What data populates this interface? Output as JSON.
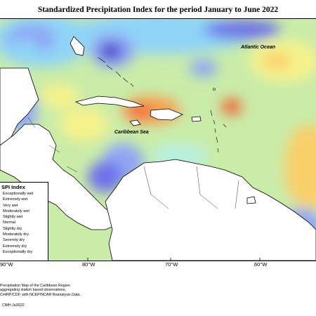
{
  "title": "Standardized Precipitation Index for the period January to June 2022",
  "ocean_labels": {
    "atlantic": "Atlantic Ocean",
    "caribbean": "Caribbean Sea"
  },
  "legend": {
    "title": "SPI Index",
    "items": [
      {
        "label": "Exceptionally wet",
        "color": "#4b3fc9"
      },
      {
        "label": "Extremely wet",
        "color": "#6d72e8"
      },
      {
        "label": "Very wet",
        "color": "#8fa6f5"
      },
      {
        "label": "Moderately wet",
        "color": "#8fd4f7"
      },
      {
        "label": "Slightly wet",
        "color": "#b8f0e0"
      },
      {
        "label": "Normal",
        "color": "#c9eca8"
      },
      {
        "label": "Slightly dry",
        "color": "#f5f28c"
      },
      {
        "label": "Moderately dry",
        "color": "#f9cf6a"
      },
      {
        "label": "Severely dry",
        "color": "#f7a04f"
      },
      {
        "label": "Extremely dry",
        "color": "#ef6a3a"
      },
      {
        "label": "Exceptionally dry",
        "color": "#d7263d"
      }
    ]
  },
  "longitude_labels": [
    "90°W",
    "80°W",
    "70°W",
    "60°W"
  ],
  "footnote": [
    "Precipitation Map of the Caribbean Region",
    "aggregating station based observations,",
    "CHIRP/CDF, with NCEP/NCAR Reanalysis Data."
  ],
  "credit": "CIMH Jul2022"
}
